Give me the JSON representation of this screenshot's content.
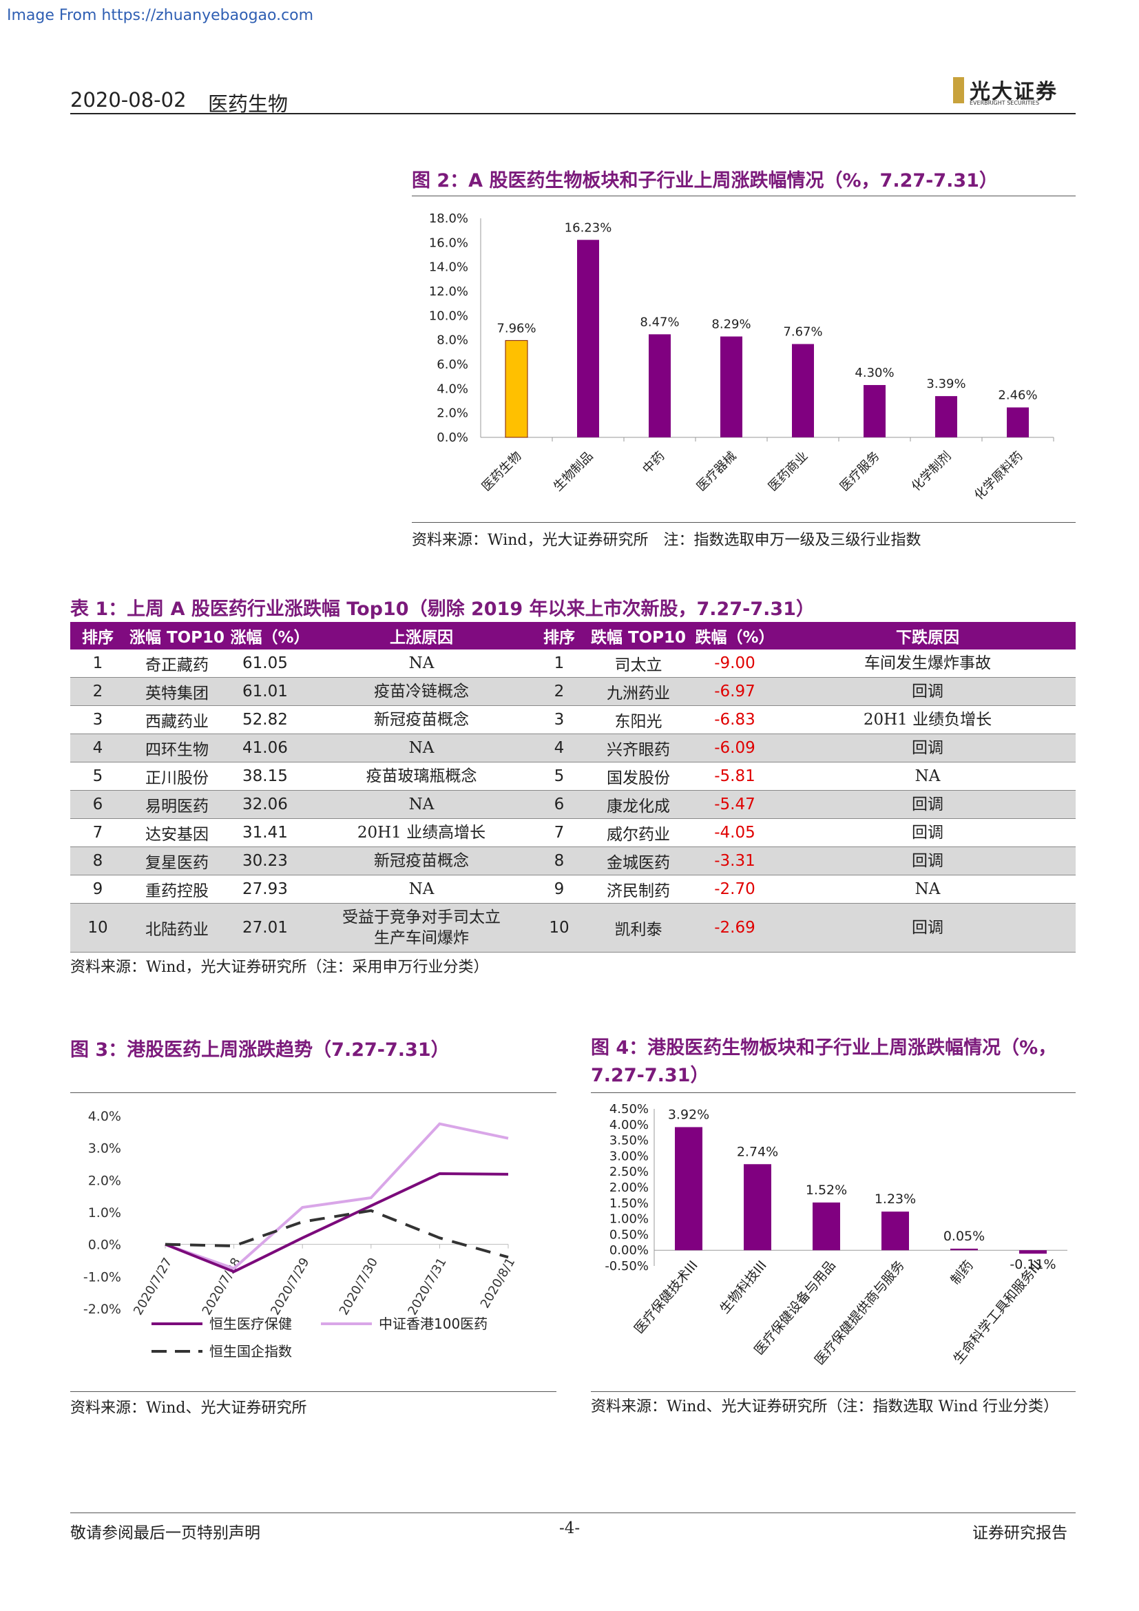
{
  "watermark": "Image From https://zhuanyebaogao.com",
  "header": {
    "date": "2020-08-02",
    "sector": "医药生物",
    "logo_cn": "光大证券",
    "logo_en": "EVERBRIGHT SECURITIES"
  },
  "fig2": {
    "title": "图 2：A 股医药生物板块和子行业上周涨跌幅情况（%，7.27-7.31）",
    "source": "资料来源：Wind，光大证券研究所　注：指数选取申万一级及三级行业指数",
    "chart_data": {
      "type": "bar",
      "categories": [
        "医药生物",
        "生物制品",
        "中药",
        "医疗器械",
        "医药商业",
        "医疗服务",
        "化学制剂",
        "化学原料药"
      ],
      "values": [
        7.96,
        16.23,
        8.47,
        8.29,
        7.67,
        4.3,
        3.39,
        2.46
      ],
      "value_labels": [
        "7.96%",
        "16.23%",
        "8.47%",
        "8.29%",
        "7.67%",
        "4.30%",
        "3.39%",
        "2.46%"
      ],
      "yticks": [
        "18.0%",
        "16.0%",
        "14.0%",
        "12.0%",
        "10.0%",
        "8.0%",
        "6.0%",
        "4.0%",
        "2.0%",
        "0.0%"
      ],
      "ylim": [
        0,
        18
      ],
      "colors": {
        "highlight": "#ffc000",
        "bar": "#800080"
      }
    }
  },
  "table1": {
    "title": "表 1：上周 A 股医药行业涨跌幅 Top10（剔除 2019 年以来上市次新股，7.27-7.31）",
    "headers": [
      "排序",
      "涨幅 TOP10",
      "涨幅（%）",
      "上涨原因",
      "排序",
      "跌幅 TOP10",
      "跌幅（%）",
      "下跌原因"
    ],
    "rows": [
      [
        "1",
        "奇正藏药",
        "61.05",
        "NA",
        "1",
        "司太立",
        "-9.00",
        "车间发生爆炸事故"
      ],
      [
        "2",
        "英特集团",
        "61.01",
        "疫苗冷链概念",
        "2",
        "九洲药业",
        "-6.97",
        "回调"
      ],
      [
        "3",
        "西藏药业",
        "52.82",
        "新冠疫苗概念",
        "3",
        "东阳光",
        "-6.83",
        "20H1 业绩负增长"
      ],
      [
        "4",
        "四环生物",
        "41.06",
        "NA",
        "4",
        "兴齐眼药",
        "-6.09",
        "回调"
      ],
      [
        "5",
        "正川股份",
        "38.15",
        "疫苗玻璃瓶概念",
        "5",
        "国发股份",
        "-5.81",
        "NA"
      ],
      [
        "6",
        "易明医药",
        "32.06",
        "NA",
        "6",
        "康龙化成",
        "-5.47",
        "回调"
      ],
      [
        "7",
        "达安基因",
        "31.41",
        "20H1 业绩高增长",
        "7",
        "威尔药业",
        "-4.05",
        "回调"
      ],
      [
        "8",
        "复星医药",
        "30.23",
        "新冠疫苗概念",
        "8",
        "金城医药",
        "-3.31",
        "回调"
      ],
      [
        "9",
        "重药控股",
        "27.93",
        "NA",
        "9",
        "济民制药",
        "-2.70",
        "NA"
      ],
      [
        "10",
        "北陆药业",
        "27.01",
        "受益于竞争对手司太立生产车间爆炸",
        "10",
        "凯利泰",
        "-2.69",
        "回调"
      ]
    ],
    "source": "资料来源：Wind，光大证券研究所（注：采用申万行业分类）"
  },
  "fig3": {
    "title": "图 3：港股医药上周涨跌趋势（7.27-7.31）",
    "source": "资料来源：Wind、光大证券研究所",
    "chart_data": {
      "type": "line",
      "x": [
        "2020/7/27",
        "2020/7/28",
        "2020/7/29",
        "2020/7/30",
        "2020/7/31",
        "2020/8/1"
      ],
      "yticks": [
        "4.0%",
        "3.0%",
        "2.0%",
        "1.0%",
        "0.0%",
        "-1.0%",
        "-2.0%"
      ],
      "ylim": [
        -2,
        4
      ],
      "series": [
        {
          "name": "恒生医疗保健",
          "values": [
            0.0,
            -0.85,
            0.2,
            1.2,
            2.2,
            2.18
          ],
          "color": "#7b0a7b"
        },
        {
          "name": "中证香港100医药",
          "values": [
            0.0,
            -0.75,
            1.15,
            1.45,
            3.75,
            3.3
          ],
          "color": "#d9a6e8"
        },
        {
          "name": "恒生国企指数",
          "values": [
            0.0,
            -0.05,
            0.7,
            1.05,
            0.2,
            -0.4
          ],
          "color": "#333333"
        }
      ]
    }
  },
  "fig4": {
    "title": "图 4：港股医药生物板块和子行业上周涨跌幅情况（%，7.27-7.31）",
    "source": "资料来源：Wind、光大证券研究所（注：指数选取 Wind 行业分类）",
    "chart_data": {
      "type": "bar",
      "categories": [
        "医疗保健技术III",
        "生物科技III",
        "医疗保健设备与用品",
        "医疗保健提供商与服务",
        "制药",
        "生命科学工具和服务III"
      ],
      "values": [
        3.92,
        2.74,
        1.52,
        1.23,
        0.05,
        -0.11
      ],
      "value_labels": [
        "3.92%",
        "2.74%",
        "1.52%",
        "1.23%",
        "0.05%",
        "-0.11%"
      ],
      "yticks": [
        "4.50%",
        "4.00%",
        "3.50%",
        "3.00%",
        "2.50%",
        "2.00%",
        "1.50%",
        "1.00%",
        "0.50%",
        "0.00%",
        "-0.50%"
      ],
      "ylim": [
        -0.5,
        4.5
      ],
      "colors": {
        "bar": "#800080"
      }
    }
  },
  "footer": {
    "left": "敬请参阅最后一页特别声明",
    "page": "-4-",
    "right": "证券研究报告"
  }
}
